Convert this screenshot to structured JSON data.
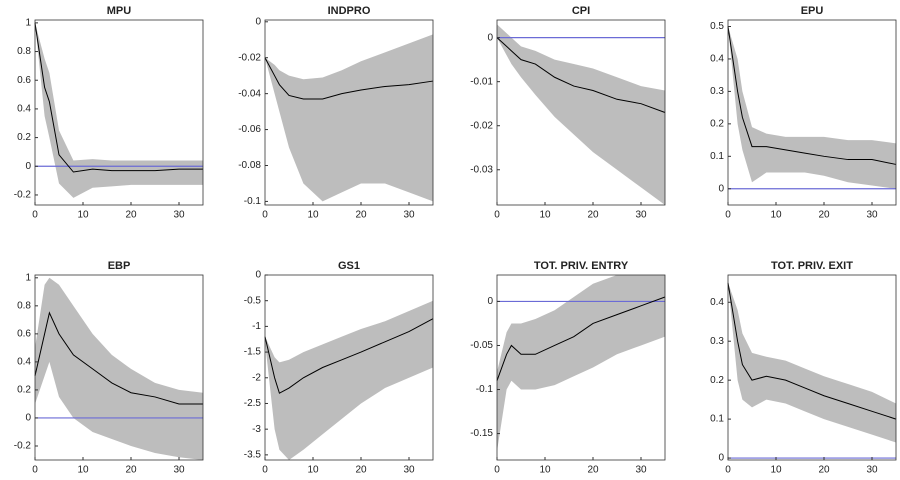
{
  "chart_data": [
    {
      "type": "line",
      "title": "MPU",
      "x": [
        0,
        2,
        3,
        5,
        8,
        12,
        16,
        20,
        25,
        30,
        35
      ],
      "values": [
        1,
        0.55,
        0.45,
        0.08,
        -0.04,
        -0.02,
        -0.03,
        -0.03,
        -0.03,
        -0.02,
        -0.02
      ],
      "upper": [
        1,
        0.75,
        0.65,
        0.25,
        0.04,
        0.05,
        0.04,
        0.04,
        0.04,
        0.04,
        0.04
      ],
      "lower": [
        1,
        0.35,
        0.2,
        -0.12,
        -0.22,
        -0.15,
        -0.14,
        -0.13,
        -0.13,
        -0.13,
        -0.13
      ],
      "color": "#000000",
      "band_color": "#bdbdbd",
      "hline": 0,
      "hline_color": "#6b6bd6",
      "xlim": [
        0,
        35
      ],
      "xticks": [
        0,
        10,
        20,
        30
      ],
      "ylim": [
        -0.27,
        1.02
      ],
      "yticks": [
        -0.2,
        0,
        0.2,
        0.4,
        0.6,
        0.8,
        1
      ]
    },
    {
      "type": "line",
      "title": "INDPRO",
      "x": [
        0,
        2,
        3,
        5,
        8,
        12,
        16,
        20,
        25,
        30,
        35
      ],
      "values": [
        -0.02,
        -0.03,
        -0.035,
        -0.041,
        -0.043,
        -0.043,
        -0.04,
        -0.038,
        -0.036,
        -0.035,
        -0.033
      ],
      "upper": [
        -0.02,
        -0.024,
        -0.027,
        -0.03,
        -0.032,
        -0.031,
        -0.027,
        -0.022,
        -0.017,
        -0.012,
        -0.007
      ],
      "lower": [
        -0.02,
        -0.04,
        -0.05,
        -0.07,
        -0.09,
        -0.1,
        -0.095,
        -0.09,
        -0.09,
        -0.095,
        -0.1
      ],
      "color": "#000000",
      "band_color": "#bdbdbd",
      "xlim": [
        0,
        35
      ],
      "xticks": [
        0,
        10,
        20,
        30
      ],
      "ylim": [
        -0.102,
        0.001
      ],
      "yticks": [
        -0.1,
        -0.08,
        -0.06,
        -0.04,
        -0.02,
        0
      ]
    },
    {
      "type": "line",
      "title": "CPI",
      "x": [
        0,
        2,
        3,
        5,
        8,
        12,
        16,
        20,
        25,
        30,
        35
      ],
      "values": [
        0,
        -0.002,
        -0.003,
        -0.005,
        -0.006,
        -0.009,
        -0.011,
        -0.012,
        -0.014,
        -0.015,
        -0.017
      ],
      "upper": [
        0.003,
        0.001,
        0,
        -0.002,
        -0.003,
        -0.005,
        -0.006,
        -0.007,
        -0.009,
        -0.011,
        -0.012
      ],
      "lower": [
        0,
        -0.004,
        -0.006,
        -0.009,
        -0.013,
        -0.018,
        -0.022,
        -0.026,
        -0.03,
        -0.034,
        -0.038
      ],
      "color": "#000000",
      "band_color": "#bdbdbd",
      "hline": 0,
      "hline_color": "#6b6bd6",
      "xlim": [
        0,
        35
      ],
      "xticks": [
        0,
        10,
        20,
        30
      ],
      "ylim": [
        -0.038,
        0.004
      ],
      "yticks": [
        -0.03,
        -0.02,
        -0.01,
        0
      ]
    },
    {
      "type": "line",
      "title": "EPU",
      "x": [
        0,
        2,
        3,
        5,
        8,
        12,
        16,
        20,
        25,
        30,
        35
      ],
      "values": [
        0.5,
        0.3,
        0.22,
        0.13,
        0.13,
        0.12,
        0.11,
        0.1,
        0.09,
        0.09,
        0.075
      ],
      "upper": [
        0.5,
        0.4,
        0.3,
        0.19,
        0.17,
        0.16,
        0.16,
        0.16,
        0.15,
        0.15,
        0.14
      ],
      "lower": [
        0.5,
        0.2,
        0.12,
        0.02,
        0.05,
        0.05,
        0.05,
        0.04,
        0.02,
        0.01,
        0
      ],
      "color": "#000000",
      "band_color": "#bdbdbd",
      "hline": 0,
      "hline_color": "#6b6bd6",
      "xlim": [
        0,
        35
      ],
      "xticks": [
        0,
        10,
        20,
        30
      ],
      "ylim": [
        -0.05,
        0.52
      ],
      "yticks": [
        0,
        0.1,
        0.2,
        0.3,
        0.4,
        0.5
      ]
    },
    {
      "type": "line",
      "title": "EBP",
      "x": [
        0,
        2,
        3,
        5,
        8,
        12,
        16,
        20,
        25,
        30,
        35
      ],
      "values": [
        0.3,
        0.6,
        0.75,
        0.6,
        0.45,
        0.35,
        0.25,
        0.18,
        0.15,
        0.1,
        0.1
      ],
      "upper": [
        0.5,
        0.95,
        1,
        0.95,
        0.8,
        0.6,
        0.45,
        0.35,
        0.25,
        0.2,
        0.18
      ],
      "lower": [
        0.1,
        0.3,
        0.4,
        0.15,
        0,
        -0.1,
        -0.15,
        -0.2,
        -0.25,
        -0.28,
        -0.3
      ],
      "color": "#000000",
      "band_color": "#bdbdbd",
      "hline": 0,
      "hline_color": "#6b6bd6",
      "xlim": [
        0,
        35
      ],
      "xticks": [
        0,
        10,
        20,
        30
      ],
      "ylim": [
        -0.3,
        1.02
      ],
      "yticks": [
        -0.2,
        0,
        0.2,
        0.4,
        0.6,
        0.8,
        1
      ]
    },
    {
      "type": "line",
      "title": "GS1",
      "x": [
        0,
        2,
        3,
        5,
        8,
        12,
        16,
        20,
        25,
        30,
        35
      ],
      "values": [
        -1.2,
        -2,
        -2.3,
        -2.2,
        -2,
        -1.8,
        -1.65,
        -1.5,
        -1.3,
        -1.1,
        -0.85
      ],
      "upper": [
        -1.2,
        -1.6,
        -1.7,
        -1.65,
        -1.5,
        -1.35,
        -1.2,
        -1.05,
        -0.9,
        -0.7,
        -0.5
      ],
      "lower": [
        -1.3,
        -3,
        -3.4,
        -3.6,
        -3.4,
        -3.1,
        -2.8,
        -2.5,
        -2.2,
        -2,
        -1.8
      ],
      "color": "#000000",
      "band_color": "#bdbdbd",
      "xlim": [
        0,
        35
      ],
      "xticks": [
        0,
        10,
        20,
        30
      ],
      "ylim": [
        -3.6,
        0
      ],
      "yticks": [
        -3.5,
        -3,
        -2.5,
        -2,
        -1.5,
        -1,
        -0.5,
        0
      ]
    },
    {
      "type": "line",
      "title": "TOT. PRIV. ENTRY",
      "x": [
        0,
        2,
        3,
        5,
        8,
        12,
        16,
        20,
        25,
        30,
        35
      ],
      "values": [
        -0.09,
        -0.06,
        -0.05,
        -0.06,
        -0.06,
        -0.05,
        -0.04,
        -0.025,
        -0.015,
        -0.005,
        0.005
      ],
      "upper": [
        -0.08,
        -0.035,
        -0.025,
        -0.025,
        -0.02,
        -0.01,
        0.005,
        0.02,
        0.03,
        0.03,
        0.03
      ],
      "lower": [
        -0.17,
        -0.1,
        -0.09,
        -0.1,
        -0.1,
        -0.095,
        -0.085,
        -0.075,
        -0.06,
        -0.05,
        -0.04
      ],
      "color": "#000000",
      "band_color": "#bdbdbd",
      "hline": 0,
      "hline_color": "#6b6bd6",
      "xlim": [
        0,
        35
      ],
      "xticks": [
        0,
        10,
        20,
        30
      ],
      "ylim": [
        -0.18,
        0.03
      ],
      "yticks": [
        -0.15,
        -0.1,
        -0.05,
        0
      ]
    },
    {
      "type": "line",
      "title": "TOT. PRIV. EXIT",
      "x": [
        0,
        2,
        3,
        5,
        8,
        12,
        16,
        20,
        25,
        30,
        35
      ],
      "values": [
        0.45,
        0.3,
        0.24,
        0.2,
        0.21,
        0.2,
        0.18,
        0.16,
        0.14,
        0.12,
        0.1
      ],
      "upper": [
        0.45,
        0.38,
        0.32,
        0.27,
        0.26,
        0.25,
        0.23,
        0.21,
        0.19,
        0.17,
        0.14
      ],
      "lower": [
        0.45,
        0.2,
        0.15,
        0.13,
        0.15,
        0.14,
        0.12,
        0.1,
        0.08,
        0.06,
        0.04
      ],
      "color": "#000000",
      "band_color": "#bdbdbd",
      "hline": 0,
      "hline_color": "#6b6bd6",
      "xlim": [
        0,
        35
      ],
      "xticks": [
        0,
        10,
        20,
        30
      ],
      "ylim": [
        -0.005,
        0.47
      ],
      "yticks": [
        0,
        0.1,
        0.2,
        0.3,
        0.4
      ]
    }
  ]
}
